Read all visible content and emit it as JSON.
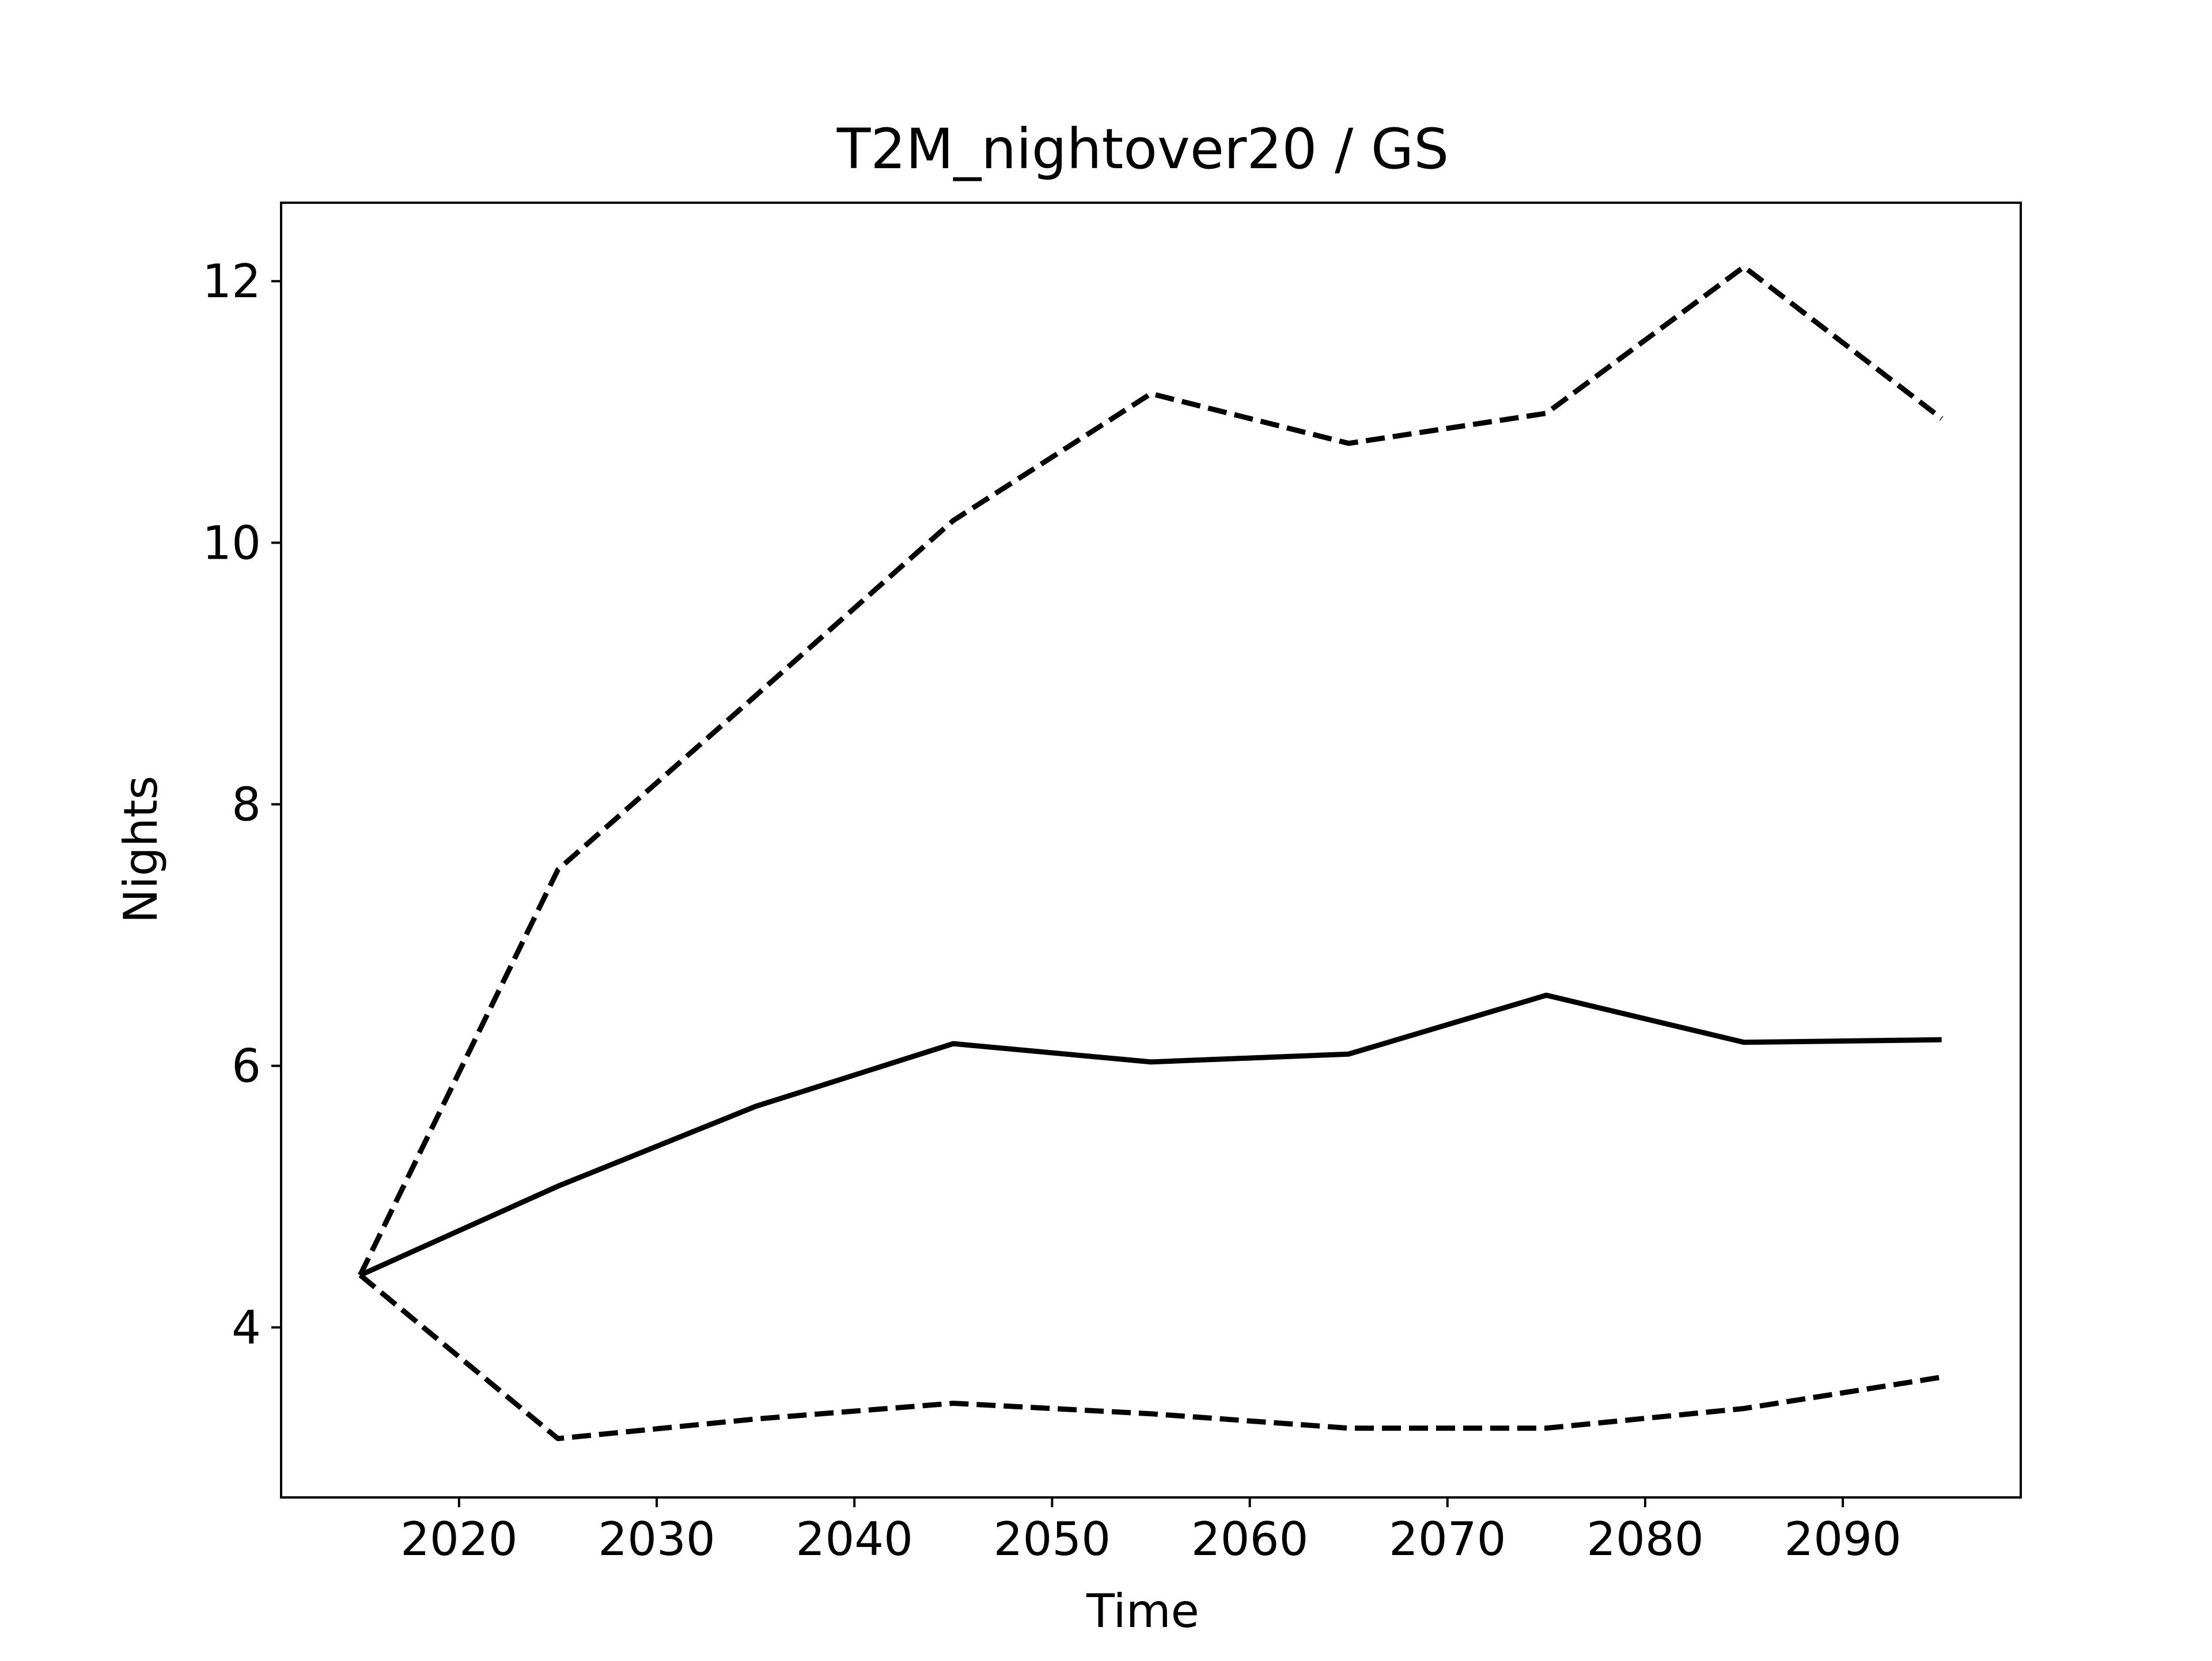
{
  "chart_data": {
    "type": "line",
    "title": "T2M_nightover20 / GS",
    "xlabel": "Time",
    "ylabel": "Nights",
    "x": [
      2015,
      2025,
      2035,
      2045,
      2055,
      2065,
      2075,
      2085,
      2095
    ],
    "xlim": [
      2011,
      2099
    ],
    "ylim": [
      2.7,
      12.6
    ],
    "xticks": [
      2020,
      2030,
      2040,
      2050,
      2060,
      2070,
      2080,
      2090
    ],
    "yticks": [
      4,
      6,
      8,
      10,
      12
    ],
    "grid": false,
    "series": [
      {
        "style": "solid",
        "values": [
          4.4,
          5.08,
          5.69,
          6.17,
          6.03,
          6.09,
          6.54,
          6.18,
          6.2
        ]
      },
      {
        "style": "dashed",
        "values": [
          4.4,
          7.5,
          8.83,
          10.17,
          11.14,
          10.76,
          10.99,
          12.11,
          10.95
        ]
      },
      {
        "style": "dashed",
        "values": [
          4.4,
          3.15,
          3.3,
          3.42,
          3.34,
          3.23,
          3.23,
          3.38,
          3.62
        ]
      }
    ],
    "line_color": "#000000"
  }
}
